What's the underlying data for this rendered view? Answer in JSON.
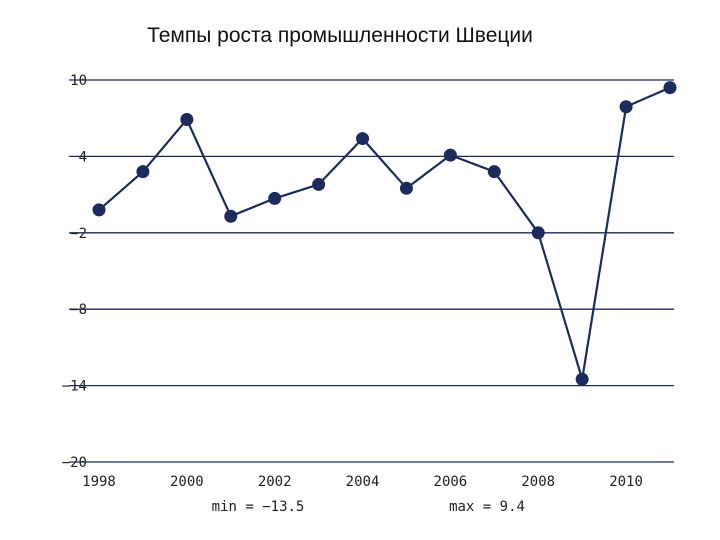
{
  "chart_data": {
    "type": "line",
    "title": "Темпы роста промышленности Швеции",
    "xlabel": "",
    "ylabel": "",
    "x": [
      1998,
      1999,
      2000,
      2001,
      2002,
      2003,
      2004,
      2005,
      2006,
      2007,
      2008,
      2009,
      2010,
      2011
    ],
    "values": [
      -0.2,
      2.8,
      6.9,
      -0.7,
      0.7,
      1.8,
      5.4,
      1.5,
      4.1,
      2.8,
      -2.0,
      -13.5,
      7.9,
      9.4
    ],
    "xlim": [
      1998,
      2011
    ],
    "ylim": [
      -20,
      10
    ],
    "yticks": [
      "10",
      "4",
      "−2",
      "−8",
      "−14",
      "−20"
    ],
    "xticks": [
      "1998",
      "2000",
      "2002",
      "2004",
      "2006",
      "2008",
      "2010"
    ],
    "grid": "horizontal",
    "line_color": "#1c2a5c",
    "grid_color": "#1c2a5c",
    "stats": {
      "min": "min = −13.5",
      "max": "max = 9.4"
    }
  }
}
